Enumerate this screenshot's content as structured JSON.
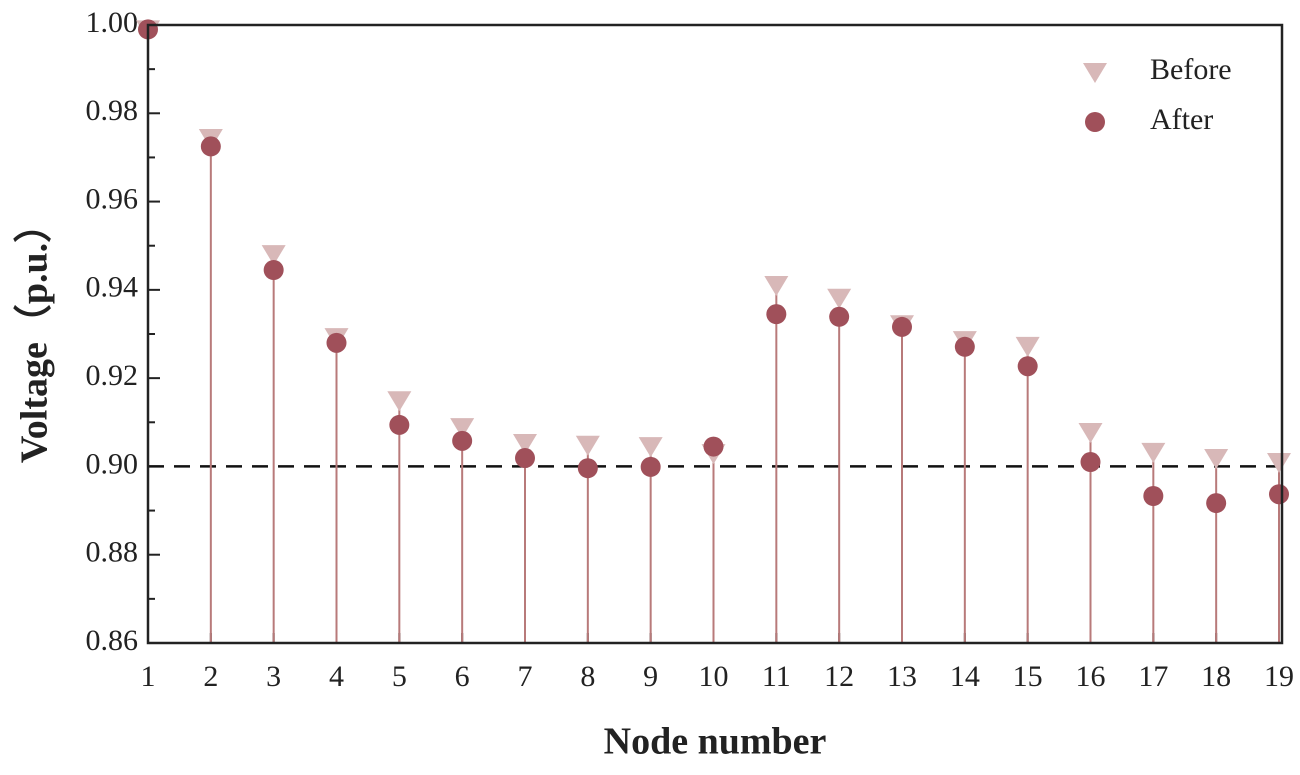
{
  "chart_data": {
    "type": "stem",
    "x_label": "Node number",
    "y_label": "Voltage（p.u.）",
    "x": [
      1,
      2,
      3,
      4,
      5,
      6,
      7,
      8,
      9,
      10,
      11,
      12,
      13,
      14,
      15,
      16,
      17,
      18,
      19
    ],
    "series": [
      {
        "name": "Before",
        "color": "#d8b8b8",
        "marker": "triangle-down",
        "values": [
          0.999,
          0.9744,
          0.9481,
          0.9293,
          0.915,
          0.9089,
          0.9053,
          0.9049,
          0.9046,
          0.903,
          0.9411,
          0.9382,
          0.9322,
          0.9286,
          0.9273,
          0.9078,
          0.9033,
          0.9019,
          0.901
        ]
      },
      {
        "name": "After",
        "color": "#a0505a",
        "marker": "circle",
        "values": [
          0.999,
          0.9725,
          0.9445,
          0.928,
          0.9094,
          0.9058,
          0.9019,
          0.8996,
          0.8999,
          0.9045,
          0.9345,
          0.9339,
          0.9316,
          0.9271,
          0.9227,
          0.901,
          0.8933,
          0.8917,
          0.8937
        ]
      }
    ],
    "stem_color": "#b87a7a",
    "reference_line": 0.9,
    "xlim": [
      1,
      19
    ],
    "xticks": [
      1,
      2,
      3,
      4,
      5,
      6,
      7,
      8,
      9,
      10,
      11,
      12,
      13,
      14,
      15,
      16,
      17,
      18,
      19
    ],
    "ylim": [
      0.86,
      1.0
    ],
    "yticks": [
      0.86,
      0.88,
      {
        "value": 0.9,
        "label": "0.90"
      },
      0.92,
      0.94,
      0.96,
      0.98,
      {
        "value": 1.0,
        "label": "1.00"
      }
    ],
    "legend": "top-right"
  }
}
